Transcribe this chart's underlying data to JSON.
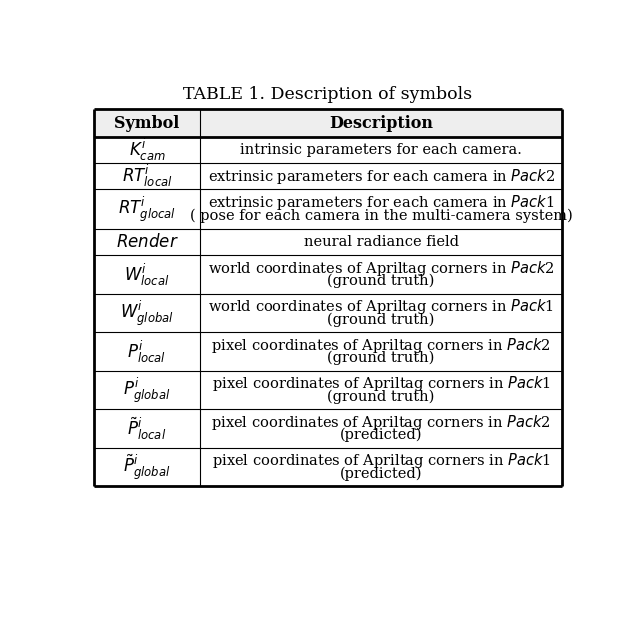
{
  "title": "TABLE 1. Description of symbols",
  "col_headers": [
    "Symbol",
    "Description"
  ],
  "rows": [
    {
      "symbol_latex": "$K_{cam}^{i}$",
      "lines": [
        "intrinsic parameters for each camera."
      ]
    },
    {
      "symbol_latex": "$RT_{local}^{i}$",
      "lines": [
        "extrinsic parameters for each camera in $\\mathit{Pack}$2"
      ]
    },
    {
      "symbol_latex": "$RT_{glocal}^{i}$",
      "lines": [
        "extrinsic parameters for each camera in $\\mathit{Pack}$1",
        "( pose for each camera in the multi-camera system)"
      ]
    },
    {
      "symbol_latex": "$\\mathit{Render}$",
      "lines": [
        "neural radiance field"
      ]
    },
    {
      "symbol_latex": "$W_{local}^{i}$",
      "lines": [
        "world coordinates of Apriltag corners in $\\mathit{Pack}$2",
        "(ground truth)"
      ]
    },
    {
      "symbol_latex": "$W_{global}^{i}$",
      "lines": [
        "world coordinates of Apriltag corners in $\\mathit{Pack}$1",
        "(ground truth)"
      ]
    },
    {
      "symbol_latex": "$P_{local}^{i}$",
      "lines": [
        "pixel coordinates of Apriltag corners in $\\mathit{Pack}$2",
        "(ground truth)"
      ]
    },
    {
      "symbol_latex": "$P_{global}^{i}$",
      "lines": [
        "pixel coordinates of Apriltag corners in $\\mathit{Pack}$1",
        "(ground truth)"
      ]
    },
    {
      "symbol_latex": "$\\tilde{P}_{local}^{i}$",
      "lines": [
        "pixel coordinates of Apriltag corners in $\\mathit{Pack}$2",
        "(predicted)"
      ]
    },
    {
      "symbol_latex": "$\\tilde{P}_{global}^{i}$",
      "lines": [
        "pixel coordinates of Apriltag corners in $\\mathit{Pack}$1",
        "(predicted)"
      ]
    }
  ],
  "bg_color": "#ffffff",
  "line_color": "#000000",
  "text_color": "#000000",
  "title_fontsize": 12.5,
  "header_fontsize": 11.5,
  "symbol_fontsize": 12,
  "desc_fontsize": 10.5
}
